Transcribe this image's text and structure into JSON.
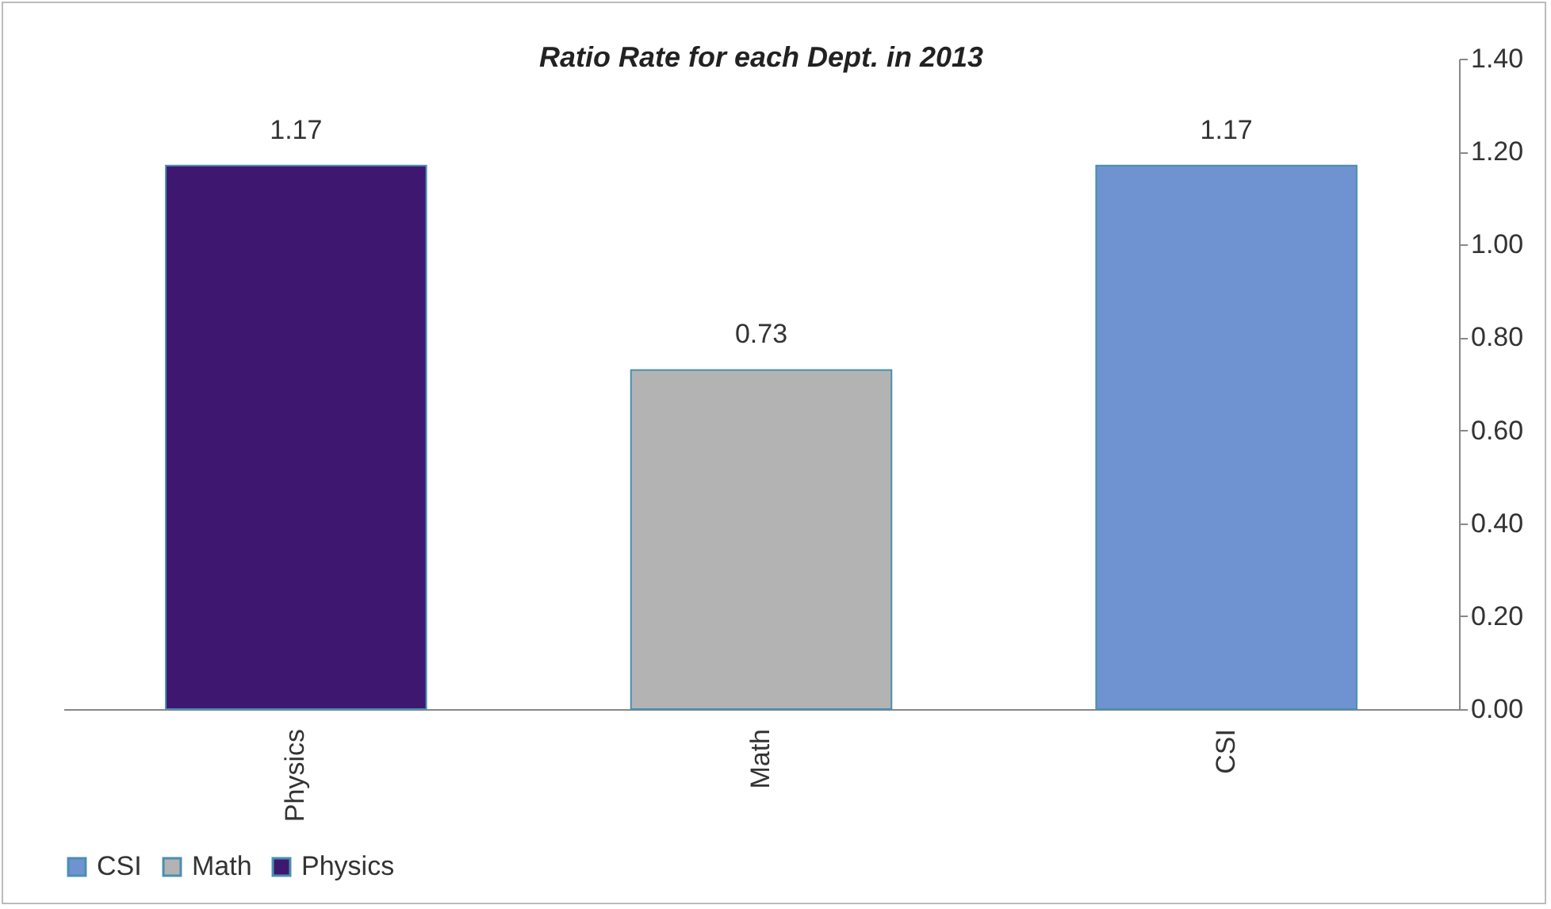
{
  "chart_data": {
    "type": "bar",
    "title": "Ratio Rate  for each Dept. in 2013",
    "categories": [
      "Physics",
      "Math",
      "CSI"
    ],
    "series": [
      {
        "name": "CSI",
        "color": "#6f93d0",
        "values": [
          null,
          null,
          1.17
        ]
      },
      {
        "name": "Math",
        "color": "#b3b3b3",
        "values": [
          null,
          0.73,
          null
        ]
      },
      {
        "name": "Physics",
        "color": "#3e1870",
        "values": [
          1.17,
          null,
          null
        ]
      }
    ],
    "ylim": [
      0,
      1.4
    ],
    "yticks": [
      {
        "value": 0,
        "label": "0.00"
      },
      {
        "value": 0.2,
        "label": "0.20"
      },
      {
        "value": 0.4,
        "label": "0.40"
      },
      {
        "value": 0.6,
        "label": "0.60"
      },
      {
        "value": 0.8,
        "label": "0.80"
      },
      {
        "value": 1,
        "label": "1.00"
      },
      {
        "value": 1.2,
        "label": "1.20"
      },
      {
        "value": 1.4,
        "label": "1.40"
      }
    ],
    "data_labels": true,
    "legend": "bottom"
  }
}
